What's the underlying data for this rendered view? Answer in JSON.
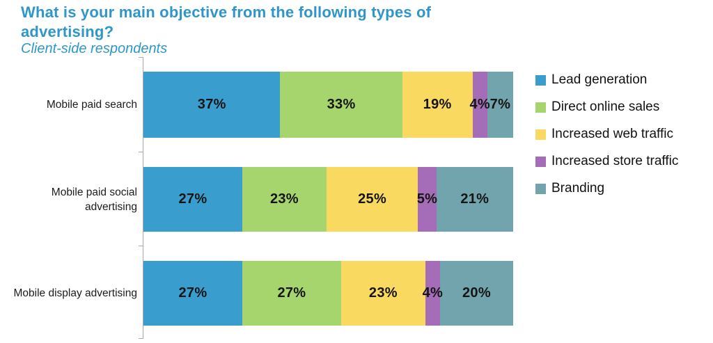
{
  "chart": {
    "title": "What is your main objective from the following types of advertising?",
    "subtitle": "Client-side respondents"
  },
  "colors": {
    "title_blue": "#2e96c9",
    "axis_gray": "#a8a8a8",
    "value_label": "#151515"
  },
  "chart_data": {
    "type": "bar",
    "orientation": "horizontal",
    "stacked": true,
    "title": "What is your main objective from the following types of advertising?",
    "subtitle": "Client-side respondents",
    "xlim": [
      0,
      100
    ],
    "grid": false,
    "legend_position": "right",
    "value_label_suffix": "%",
    "categories": [
      "Mobile paid search",
      "Mobile paid social advertising",
      "Mobile display advertising"
    ],
    "category_label_lines": [
      [
        "Mobile paid search"
      ],
      [
        "Mobile paid social",
        "advertising"
      ],
      [
        "Mobile display advertising"
      ]
    ],
    "series": [
      {
        "name": "Lead generation",
        "color": "#399ecd",
        "values": [
          37,
          27,
          27
        ]
      },
      {
        "name": "Direct online sales",
        "color": "#a6d46d",
        "values": [
          33,
          23,
          27
        ]
      },
      {
        "name": "Increased web traffic",
        "color": "#fad961",
        "values": [
          19,
          25,
          23
        ]
      },
      {
        "name": "Increased store traffic",
        "color": "#a56cb8",
        "values": [
          4,
          5,
          4
        ]
      },
      {
        "name": "Branding",
        "color": "#71a4ad",
        "values": [
          7,
          21,
          20
        ]
      }
    ]
  }
}
